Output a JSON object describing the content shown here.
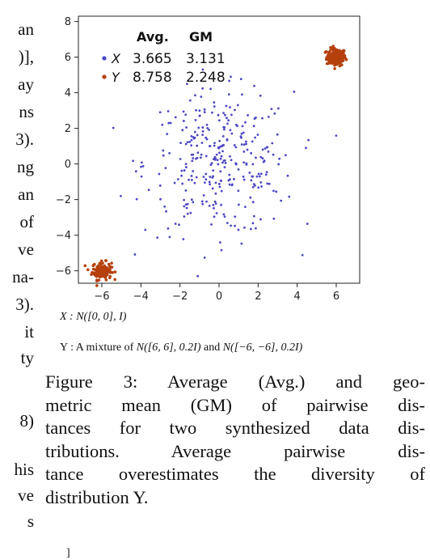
{
  "left_fragments": [
    "an",
    ")],",
    "ay",
    "ns",
    "3).",
    "ng",
    "an",
    "of",
    "ve",
    "na-",
    "3).",
    "it",
    "ty",
    "8)",
    "his",
    "ve",
    "s"
  ],
  "chart_data": {
    "type": "scatter",
    "title": "",
    "xlabel": "",
    "ylabel": "",
    "xlim": [
      -7.2,
      7.2
    ],
    "ylim": [
      -6.7,
      8.3
    ],
    "xticks": [
      -6,
      -4,
      -2,
      0,
      2,
      4,
      6
    ],
    "yticks": [
      -6,
      -4,
      -2,
      0,
      2,
      4,
      6,
      8
    ],
    "xtick_labels": [
      "−6",
      "−4",
      "−2",
      "0",
      "2",
      "4",
      "6"
    ],
    "ytick_labels": [
      "−6",
      "−4",
      "−2",
      "0",
      "2",
      "4",
      "6",
      "8"
    ],
    "grid": false,
    "legend": {
      "placement": "top-left",
      "headers": [
        "Avg.",
        "GM"
      ],
      "rows": [
        {
          "name": "X",
          "avg": "3.665",
          "gm": "3.131"
        },
        {
          "name": "Y",
          "avg": "8.758",
          "gm": "2.248"
        }
      ]
    },
    "series": [
      {
        "name": "X",
        "color": "#4b47c4",
        "distribution": "N([0,0], I)",
        "n_points": 320
      },
      {
        "name": "Y",
        "color": "#b5400c",
        "distribution": "mixture of N([6,6],0.2I) and N([-6,-6],0.2I)",
        "centers": [
          [
            6,
            6
          ],
          [
            -6,
            -6
          ]
        ],
        "n_points_per_cluster": 140
      }
    ]
  },
  "x_definition": "X : N([0, 0], I)",
  "y_definition": {
    "prefix": "Y : A mixture of ",
    "first": "N([6, 6], 0.2I)",
    "middle": " and ",
    "second": "N([−6, −6], 0.2I)"
  },
  "caption": [
    "Figure 3: Average (Avg.) and geo-",
    "metric mean (GM) of pairwise dis-",
    "tances for two synthesized data dis-",
    "tributions.  Average pairwise dis-",
    "tance overestimates the diversity of",
    "distribution Y."
  ],
  "bracket": "]"
}
